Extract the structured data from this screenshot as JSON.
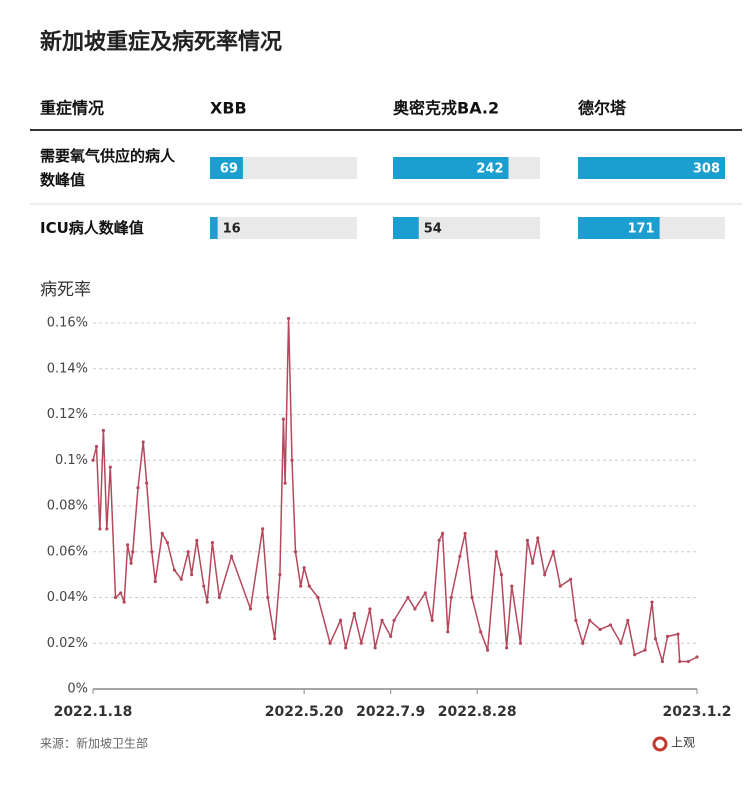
{
  "title": "新加坡重症及病死率情况",
  "table": {
    "headers": [
      "重症情况",
      "XBB",
      "奥密克戎BA.2",
      "德尔塔"
    ],
    "rows": [
      {
        "label": "需要氧气供应的病人数峰值",
        "values": [
          69,
          242,
          308
        ]
      },
      {
        "label": "ICU病人数峰值",
        "values": [
          16,
          54,
          171
        ]
      }
    ],
    "color": "#1a9fd0"
  },
  "chart_data": {
    "type": "line",
    "title": "病死率",
    "x": [
      "2022.1.18",
      "2022.1.20",
      "2022.1.22",
      "2022.1.24",
      "2022.1.26",
      "2022.1.28",
      "2022.1.31",
      "2022.2.3",
      "2022.2.5",
      "2022.2.7",
      "2022.2.9",
      "2022.2.10",
      "2022.2.13",
      "2022.2.16",
      "2022.2.18",
      "2022.2.21",
      "2022.2.23",
      "2022.2.27",
      "2022.3.2",
      "2022.3.6",
      "2022.3.10",
      "2022.3.14",
      "2022.3.16",
      "2022.3.19",
      "2022.3.23",
      "2022.3.25",
      "2022.3.28",
      "2022.4.1",
      "2022.4.8",
      "2022.4.19",
      "2022.4.26",
      "2022.4.29",
      "2022.5.3",
      "2022.5.6",
      "2022.5.8",
      "2022.5.9",
      "2022.5.11",
      "2022.5.13",
      "2022.5.15",
      "2022.5.18",
      "2022.5.20",
      "2022.5.23",
      "2022.5.28",
      "2022.6.4",
      "2022.6.10",
      "2022.6.13",
      "2022.6.18",
      "2022.6.22",
      "2022.6.27",
      "2022.6.30",
      "2022.7.4",
      "2022.7.9",
      "2022.7.11",
      "2022.7.19",
      "2022.7.23",
      "2022.7.29",
      "2022.8.2",
      "2022.8.6",
      "2022.8.8",
      "2022.8.11",
      "2022.8.13",
      "2022.8.18",
      "2022.8.21",
      "2022.8.25",
      "2022.8.30",
      "2022.9.3",
      "2022.9.8",
      "2022.9.11",
      "2022.9.14",
      "2022.9.17",
      "2022.9.22",
      "2022.9.26",
      "2022.9.29",
      "2022.10.2",
      "2022.10.6",
      "2022.10.11",
      "2022.10.15",
      "2022.10.21",
      "2022.10.24",
      "2022.10.28",
      "2022.11.1",
      "2022.11.7",
      "2022.11.13",
      "2022.11.19",
      "2022.11.23",
      "2022.11.27",
      "2022.12.3",
      "2022.12.7",
      "2022.12.9",
      "2022.12.13",
      "2022.12.16",
      "2022.12.22",
      "2022.12.23",
      "2022.12.28",
      "2023.1.2"
    ],
    "series": [
      {
        "name": "病死率",
        "color": "#b5485c",
        "values": [
          0.1,
          0.106,
          0.07,
          0.113,
          0.07,
          0.097,
          0.04,
          0.042,
          0.038,
          0.063,
          0.055,
          0.06,
          0.088,
          0.108,
          0.09,
          0.06,
          0.047,
          0.068,
          0.064,
          0.052,
          0.048,
          0.06,
          0.05,
          0.065,
          0.045,
          0.038,
          0.064,
          0.04,
          0.058,
          0.035,
          0.07,
          0.04,
          0.022,
          0.05,
          0.118,
          0.09,
          0.162,
          0.1,
          0.06,
          0.045,
          0.053,
          0.045,
          0.04,
          0.02,
          0.03,
          0.018,
          0.033,
          0.02,
          0.035,
          0.018,
          0.03,
          0.023,
          0.03,
          0.04,
          0.035,
          0.042,
          0.03,
          0.065,
          0.068,
          0.025,
          0.04,
          0.058,
          0.068,
          0.04,
          0.025,
          0.017,
          0.06,
          0.05,
          0.018,
          0.045,
          0.02,
          0.065,
          0.055,
          0.066,
          0.05,
          0.06,
          0.045,
          0.048,
          0.03,
          0.02,
          0.03,
          0.026,
          0.028,
          0.02,
          0.03,
          0.015,
          0.017,
          0.038,
          0.022,
          0.012,
          0.023,
          0.024,
          0.012,
          0.012,
          0.014
        ]
      }
    ],
    "xlim": [
      "2022.1.18",
      "2023.1.2"
    ],
    "xticks": [
      "2022.1.18",
      "2022.5.20",
      "2022.7.9",
      "2022.8.28",
      "2023.1.2"
    ],
    "ylim": [
      0,
      0.16
    ],
    "yticks": [
      {
        "value": 0,
        "label": "0%"
      },
      {
        "value": 0.02,
        "label": "0.02%"
      },
      {
        "value": 0.04,
        "label": "0.04%"
      },
      {
        "value": 0.06,
        "label": "0.06%"
      },
      {
        "value": 0.08,
        "label": "0.08%"
      },
      {
        "value": 0.1,
        "label": "0.1%"
      },
      {
        "value": 0.12,
        "label": "0.12%"
      },
      {
        "value": 0.14,
        "label": "0.14%"
      },
      {
        "value": 0.16,
        "label": "0.16%"
      }
    ],
    "grid": true
  },
  "source": "来源：新加坡卫生部",
  "logo": "上观"
}
